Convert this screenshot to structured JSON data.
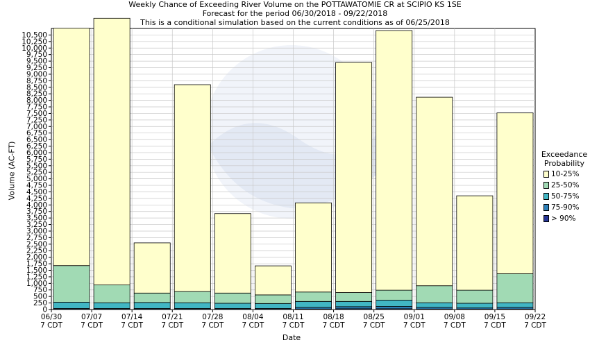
{
  "chart_data": {
    "type": "bar",
    "title_lines": [
      "Weekly Chance of Exceeding River Volume on the POTTAWATOMIE CR at SCIPIO KS 1SE",
      "Forecast for the period 06/30/2018 - 09/22/2018",
      "This is a conditional simulation based on the current conditions as of 06/25/2018"
    ],
    "xlabel": "Date",
    "ylabel": "Volume (AC-FT)",
    "ylim": [
      0,
      10750
    ],
    "yticks": [
      "0",
      "250",
      "500",
      "750",
      "1,000",
      "1,250",
      "1,500",
      "1,750",
      "2,000",
      "2,250",
      "2,500",
      "2,750",
      "3,000",
      "3,250",
      "3,500",
      "3,750",
      "4,000",
      "4,250",
      "4,500",
      "4,750",
      "5,000",
      "5,250",
      "5,500",
      "5,750",
      "6,000",
      "6,250",
      "6,500",
      "6,750",
      "7,000",
      "7,250",
      "7,500",
      "7,750",
      "8,000",
      "8,250",
      "8,500",
      "8,750",
      "9,000",
      "9,250",
      "9,500",
      "9,750",
      "10,000",
      "10,250",
      "10,500"
    ],
    "x_ticks": [
      {
        "date": "06/30",
        "tz": "7 CDT"
      },
      {
        "date": "07/07",
        "tz": "7 CDT"
      },
      {
        "date": "07/14",
        "tz": "7 CDT"
      },
      {
        "date": "07/21",
        "tz": "7 CDT"
      },
      {
        "date": "07/28",
        "tz": "7 CDT"
      },
      {
        "date": "08/04",
        "tz": "7 CDT"
      },
      {
        "date": "08/11",
        "tz": "7 CDT"
      },
      {
        "date": "08/18",
        "tz": "7 CDT"
      },
      {
        "date": "08/25",
        "tz": "7 CDT"
      },
      {
        "date": "09/01",
        "tz": "7 CDT"
      },
      {
        "date": "09/08",
        "tz": "7 CDT"
      },
      {
        "date": "09/15",
        "tz": "7 CDT"
      },
      {
        "date": "09/22",
        "tz": "7 CDT"
      }
    ],
    "legend": {
      "title_lines": [
        "Exceedance",
        "Probability"
      ],
      "placement": "right",
      "entries": [
        {
          "label": "10-25%",
          "color": "#ffffcc"
        },
        {
          "label": "25-50%",
          "color": "#a1dab4"
        },
        {
          "label": "50-75%",
          "color": "#41b6c4"
        },
        {
          "label": "75-90%",
          "color": "#2c7fb8"
        },
        {
          "label": "> 90%",
          "color": "#253494"
        }
      ]
    },
    "grid": true,
    "series": [
      {
        "name": "> 90%",
        "values": [
          10,
          10,
          10,
          10,
          10,
          10,
          20,
          30,
          30,
          20,
          15,
          20
        ]
      },
      {
        "name": "75-90%",
        "values": [
          30,
          30,
          30,
          30,
          30,
          30,
          60,
          80,
          90,
          60,
          45,
          60
        ]
      },
      {
        "name": "50-75%",
        "values": [
          240,
          220,
          230,
          220,
          200,
          190,
          230,
          200,
          240,
          180,
          180,
          180
        ]
      },
      {
        "name": "25-50%",
        "values": [
          1400,
          680,
          360,
          430,
          390,
          330,
          360,
          340,
          380,
          650,
          500,
          1110
        ]
      },
      {
        "name": "10-25%",
        "values": [
          9080,
          10200,
          1920,
          7910,
          3040,
          1110,
          3410,
          8800,
          9930,
          7210,
          3610,
          6150
        ]
      }
    ]
  }
}
